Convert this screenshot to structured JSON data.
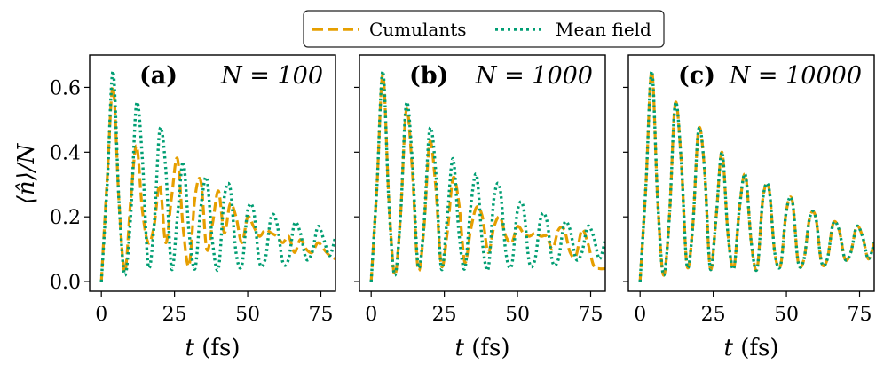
{
  "legend": {
    "items": [
      {
        "label": "Cumulants",
        "color": "#E69F00",
        "style": "dashed"
      },
      {
        "label": "Mean field",
        "color": "#009E73",
        "style": "dotted"
      }
    ]
  },
  "ylabel": "⟨n̂⟩/N",
  "chart_data": [
    {
      "type": "line",
      "panel": "(a)",
      "title": "N = 100",
      "xlabel": "t (fs)",
      "ylabel": "⟨n̂⟩/N",
      "xlim": [
        -4,
        80
      ],
      "ylim": [
        -0.03,
        0.7
      ],
      "xticks": [
        0,
        25,
        50,
        75
      ],
      "yticks": [
        0.0,
        0.2,
        0.4,
        0.6
      ],
      "series": [
        {
          "name": "Cumulants",
          "color": "#E69F00",
          "x": [
            0,
            2,
            4,
            6,
            8,
            10,
            12,
            14,
            16,
            18,
            20,
            22,
            24,
            26,
            28,
            30,
            32,
            34,
            36,
            38,
            40,
            42,
            44,
            46,
            48,
            50,
            52,
            54,
            56,
            58,
            60,
            62,
            64,
            66,
            68,
            70,
            72,
            74,
            76,
            78,
            80
          ],
          "y": [
            0.0,
            0.32,
            0.6,
            0.25,
            0.03,
            0.25,
            0.42,
            0.22,
            0.12,
            0.17,
            0.3,
            0.12,
            0.26,
            0.38,
            0.16,
            0.05,
            0.26,
            0.31,
            0.1,
            0.18,
            0.28,
            0.15,
            0.24,
            0.2,
            0.12,
            0.2,
            0.17,
            0.14,
            0.16,
            0.15,
            0.14,
            0.12,
            0.14,
            0.09,
            0.13,
            0.1,
            0.09,
            0.12,
            0.1,
            0.08,
            0.07
          ]
        },
        {
          "name": "Mean field",
          "color": "#009E73",
          "x": [
            0,
            2,
            4,
            6,
            8,
            10,
            12,
            14,
            16,
            18,
            20,
            22,
            24,
            26,
            28,
            30,
            32,
            34,
            36,
            38,
            40,
            42,
            44,
            46,
            48,
            50,
            52,
            54,
            56,
            58,
            60,
            62,
            64,
            66,
            68,
            70,
            72,
            74,
            76,
            78,
            80
          ],
          "y": [
            0.0,
            0.3,
            0.65,
            0.25,
            0.02,
            0.2,
            0.55,
            0.38,
            0.05,
            0.17,
            0.47,
            0.35,
            0.04,
            0.2,
            0.37,
            0.15,
            0.04,
            0.23,
            0.32,
            0.12,
            0.04,
            0.26,
            0.29,
            0.09,
            0.05,
            0.22,
            0.22,
            0.06,
            0.07,
            0.2,
            0.18,
            0.06,
            0.07,
            0.18,
            0.15,
            0.07,
            0.09,
            0.17,
            0.13,
            0.08,
            0.14
          ]
        }
      ]
    },
    {
      "type": "line",
      "panel": "(b)",
      "title": "N = 1000",
      "xlabel": "t (fs)",
      "xlim": [
        -4,
        80
      ],
      "ylim": [
        -0.03,
        0.7
      ],
      "xticks": [
        0,
        25,
        50,
        75
      ],
      "yticks": [
        0.0,
        0.2,
        0.4,
        0.6
      ],
      "series": [
        {
          "name": "Cumulants",
          "color": "#E69F00",
          "x": [
            0,
            2,
            4,
            6,
            8,
            10,
            12,
            14,
            16,
            18,
            20,
            22,
            24,
            26,
            28,
            30,
            32,
            34,
            36,
            38,
            40,
            42,
            44,
            46,
            48,
            50,
            52,
            54,
            56,
            58,
            60,
            62,
            64,
            66,
            68,
            70,
            72,
            74,
            76,
            78,
            80
          ],
          "y": [
            0.0,
            0.3,
            0.64,
            0.26,
            0.02,
            0.2,
            0.53,
            0.35,
            0.04,
            0.16,
            0.43,
            0.3,
            0.05,
            0.15,
            0.32,
            0.24,
            0.06,
            0.16,
            0.23,
            0.2,
            0.09,
            0.17,
            0.2,
            0.14,
            0.12,
            0.17,
            0.15,
            0.14,
            0.15,
            0.14,
            0.14,
            0.1,
            0.16,
            0.16,
            0.09,
            0.08,
            0.16,
            0.12,
            0.05,
            0.04,
            0.04
          ]
        },
        {
          "name": "Mean field",
          "color": "#009E73",
          "x": [
            0,
            2,
            4,
            6,
            8,
            10,
            12,
            14,
            16,
            18,
            20,
            22,
            24,
            26,
            28,
            30,
            32,
            34,
            36,
            38,
            40,
            42,
            44,
            46,
            48,
            50,
            52,
            54,
            56,
            58,
            60,
            62,
            64,
            66,
            68,
            70,
            72,
            74,
            76,
            78,
            80
          ],
          "y": [
            0.0,
            0.3,
            0.65,
            0.25,
            0.02,
            0.2,
            0.55,
            0.38,
            0.05,
            0.17,
            0.47,
            0.35,
            0.04,
            0.2,
            0.38,
            0.15,
            0.04,
            0.23,
            0.33,
            0.12,
            0.04,
            0.26,
            0.29,
            0.09,
            0.05,
            0.22,
            0.23,
            0.06,
            0.07,
            0.2,
            0.19,
            0.06,
            0.07,
            0.18,
            0.16,
            0.07,
            0.09,
            0.17,
            0.14,
            0.07,
            0.13
          ]
        }
      ]
    },
    {
      "type": "line",
      "panel": "(c)",
      "title": "N = 10000",
      "xlabel": "t (fs)",
      "xlim": [
        -4,
        80
      ],
      "ylim": [
        -0.03,
        0.7
      ],
      "xticks": [
        0,
        25,
        50,
        75
      ],
      "yticks": [
        0.0,
        0.2,
        0.4,
        0.6
      ],
      "series": [
        {
          "name": "Cumulants",
          "color": "#E69F00",
          "x": [
            0,
            2,
            4,
            6,
            8,
            10,
            12,
            14,
            16,
            18,
            20,
            22,
            24,
            26,
            28,
            30,
            32,
            34,
            36,
            38,
            40,
            42,
            44,
            46,
            48,
            50,
            52,
            54,
            56,
            58,
            60,
            62,
            64,
            66,
            68,
            70,
            72,
            74,
            76,
            78,
            80
          ],
          "y": [
            0.0,
            0.3,
            0.65,
            0.25,
            0.02,
            0.2,
            0.55,
            0.38,
            0.05,
            0.17,
            0.47,
            0.35,
            0.04,
            0.2,
            0.4,
            0.15,
            0.04,
            0.23,
            0.33,
            0.12,
            0.04,
            0.26,
            0.29,
            0.09,
            0.05,
            0.22,
            0.25,
            0.06,
            0.07,
            0.2,
            0.2,
            0.06,
            0.07,
            0.18,
            0.16,
            0.07,
            0.09,
            0.17,
            0.14,
            0.07,
            0.12
          ]
        },
        {
          "name": "Mean field",
          "color": "#009E73",
          "x": [
            0,
            2,
            4,
            6,
            8,
            10,
            12,
            14,
            16,
            18,
            20,
            22,
            24,
            26,
            28,
            30,
            32,
            34,
            36,
            38,
            40,
            42,
            44,
            46,
            48,
            50,
            52,
            54,
            56,
            58,
            60,
            62,
            64,
            66,
            68,
            70,
            72,
            74,
            76,
            78,
            80
          ],
          "y": [
            0.0,
            0.3,
            0.65,
            0.25,
            0.02,
            0.2,
            0.55,
            0.38,
            0.05,
            0.17,
            0.47,
            0.35,
            0.04,
            0.2,
            0.4,
            0.15,
            0.04,
            0.23,
            0.33,
            0.12,
            0.04,
            0.26,
            0.29,
            0.09,
            0.05,
            0.22,
            0.25,
            0.06,
            0.07,
            0.2,
            0.2,
            0.06,
            0.07,
            0.18,
            0.16,
            0.07,
            0.09,
            0.17,
            0.14,
            0.07,
            0.12
          ]
        }
      ]
    }
  ]
}
